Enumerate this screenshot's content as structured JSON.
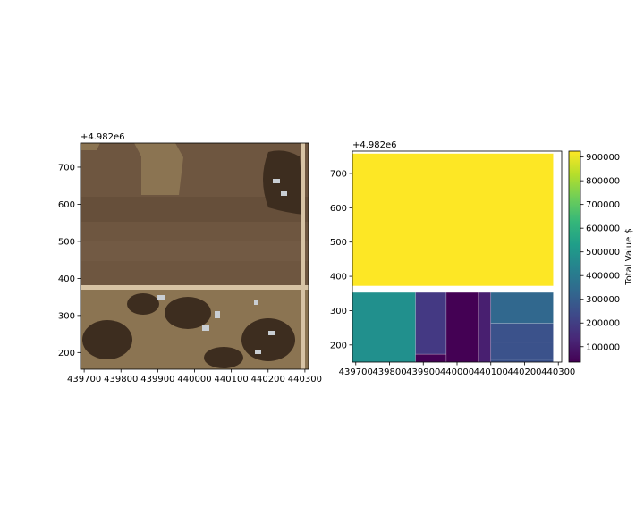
{
  "chart_data": [
    {
      "type": "image",
      "panel": "aerial-photo",
      "offset_label": "+4.982e6",
      "xlim": [
        439690,
        440310
      ],
      "ylim": [
        155,
        765
      ],
      "xticks": [
        439700,
        439800,
        439900,
        440000,
        440100,
        440200,
        440300
      ],
      "xtick_labels": [
        "439700",
        "439800",
        "439900",
        "440000",
        "440100",
        "440200",
        "440300"
      ],
      "yticks": [
        200,
        300,
        400,
        500,
        600,
        700
      ],
      "ytick_labels": [
        "200",
        "300",
        "400",
        "500",
        "600",
        "700"
      ],
      "xlabel": "",
      "ylabel": "",
      "title": "",
      "colors": {
        "field": "#6e5640",
        "field_dark": "#5a4330",
        "field_light": "#7f6751",
        "lot": "#8b7452",
        "road": "#d7c3a4",
        "tree": "#3d2d1f",
        "roof": "#c9ced3"
      }
    },
    {
      "type": "polygon-map",
      "panel": "parcel-values",
      "offset_label": "+4.982e6",
      "xlim": [
        439690,
        440310
      ],
      "ylim": [
        150,
        765
      ],
      "xticks": [
        439700,
        439800,
        439900,
        440000,
        440100,
        440200,
        440300
      ],
      "xtick_labels": [
        "439700",
        "439800",
        "439900",
        "440000",
        "440100",
        "440200",
        "440300"
      ],
      "yticks": [
        200,
        300,
        400,
        500,
        600,
        700
      ],
      "ytick_labels": [
        "200",
        "300",
        "400",
        "500",
        "600",
        "700"
      ],
      "xlabel": "",
      "ylabel": "",
      "title": "",
      "parcels": [
        {
          "x0": 439690,
          "x1": 440285,
          "y0": 372,
          "y1": 758,
          "value": 915000,
          "color": "#fde725"
        },
        {
          "x0": 439690,
          "x1": 439877,
          "y0": 150,
          "y1": 353,
          "value": 480000,
          "color": "#21908d"
        },
        {
          "x0": 439877,
          "x1": 439968,
          "y0": 173,
          "y1": 353,
          "value": 130000,
          "color": "#443983"
        },
        {
          "x0": 439877,
          "x1": 439968,
          "y0": 150,
          "y1": 173,
          "value": 40000,
          "color": "#440154"
        },
        {
          "x0": 439968,
          "x1": 440063,
          "y0": 150,
          "y1": 353,
          "value": 40000,
          "color": "#440154"
        },
        {
          "x0": 440063,
          "x1": 440100,
          "y0": 150,
          "y1": 353,
          "value": 90000,
          "color": "#481f70"
        },
        {
          "x0": 440100,
          "x1": 440285,
          "y0": 263,
          "y1": 353,
          "value": 350000,
          "color": "#31688e"
        },
        {
          "x0": 440100,
          "x1": 440285,
          "y0": 208,
          "y1": 263,
          "value": 250000,
          "color": "#3b528b"
        },
        {
          "x0": 440100,
          "x1": 440285,
          "y0": 158,
          "y1": 208,
          "value": 250000,
          "color": "#3b528b"
        },
        {
          "x0": 440100,
          "x1": 440285,
          "y0": 150,
          "y1": 158,
          "value": 250000,
          "color": "#3b528b"
        }
      ],
      "colorbar": {
        "label": "Total Value $",
        "vmin": 35000,
        "vmax": 925000,
        "ticks": [
          100000,
          200000,
          300000,
          400000,
          500000,
          600000,
          700000,
          800000,
          900000
        ],
        "tick_labels": [
          "100000",
          "200000",
          "300000",
          "400000",
          "500000",
          "600000",
          "700000",
          "800000",
          "900000"
        ],
        "colormap": [
          "#440154",
          "#482878",
          "#3e4989",
          "#31688e",
          "#26828e",
          "#1f9e89",
          "#35b779",
          "#6ece58",
          "#b5de2b",
          "#fde725"
        ]
      }
    }
  ]
}
